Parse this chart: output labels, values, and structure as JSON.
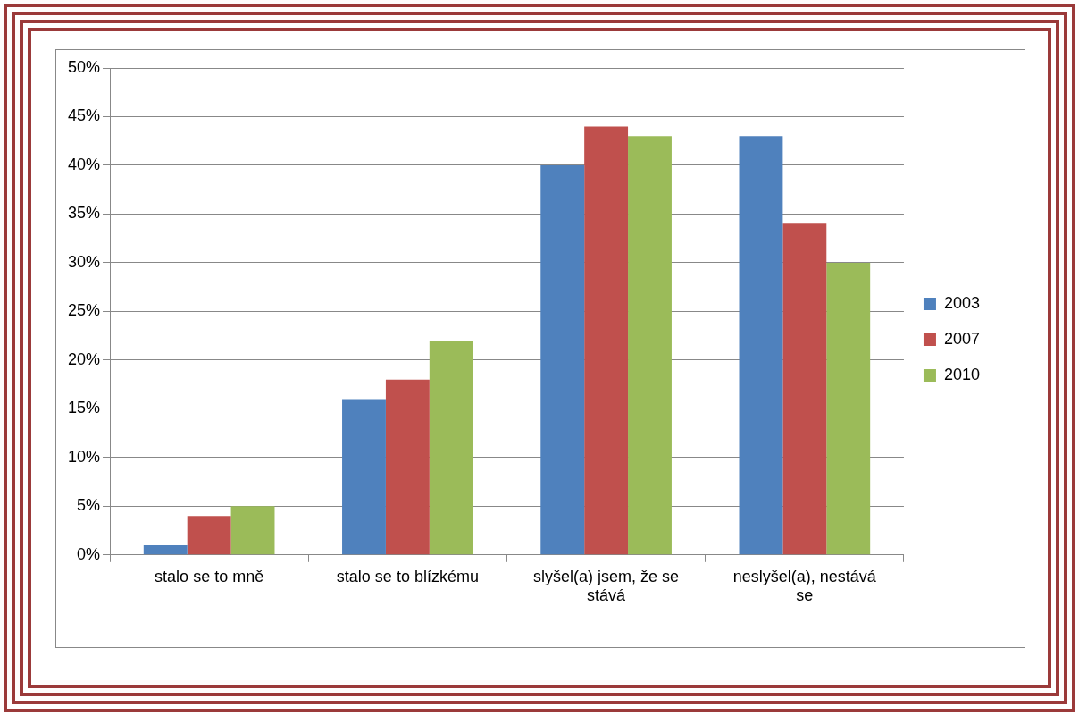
{
  "chart_data": {
    "type": "bar",
    "categories": [
      "stalo se to mně",
      "stalo se to blízkému",
      "slyšel(a) jsem, že se stává",
      "neslyšel(a), nestává se"
    ],
    "series": [
      {
        "name": "2003",
        "color": "#4f81bd",
        "values": [
          1,
          16,
          40,
          43
        ]
      },
      {
        "name": "2007",
        "color": "#c0504d",
        "values": [
          4,
          18,
          44,
          34
        ]
      },
      {
        "name": "2010",
        "color": "#9bbb59",
        "values": [
          5,
          22,
          43,
          30
        ]
      }
    ],
    "ylim": [
      0,
      50
    ],
    "yticks": [
      {
        "value": 0,
        "label": "0%"
      },
      {
        "value": 5,
        "label": "5%"
      },
      {
        "value": 10,
        "label": "10%"
      },
      {
        "value": 15,
        "label": "15%"
      },
      {
        "value": 20,
        "label": "20%"
      },
      {
        "value": 25,
        "label": "25%"
      },
      {
        "value": 30,
        "label": "30%"
      },
      {
        "value": 35,
        "label": "35%"
      },
      {
        "value": 40,
        "label": "40%"
      },
      {
        "value": 45,
        "label": "45%"
      },
      {
        "value": 50,
        "label": "50%"
      }
    ],
    "grid": "y",
    "legend": "right"
  }
}
